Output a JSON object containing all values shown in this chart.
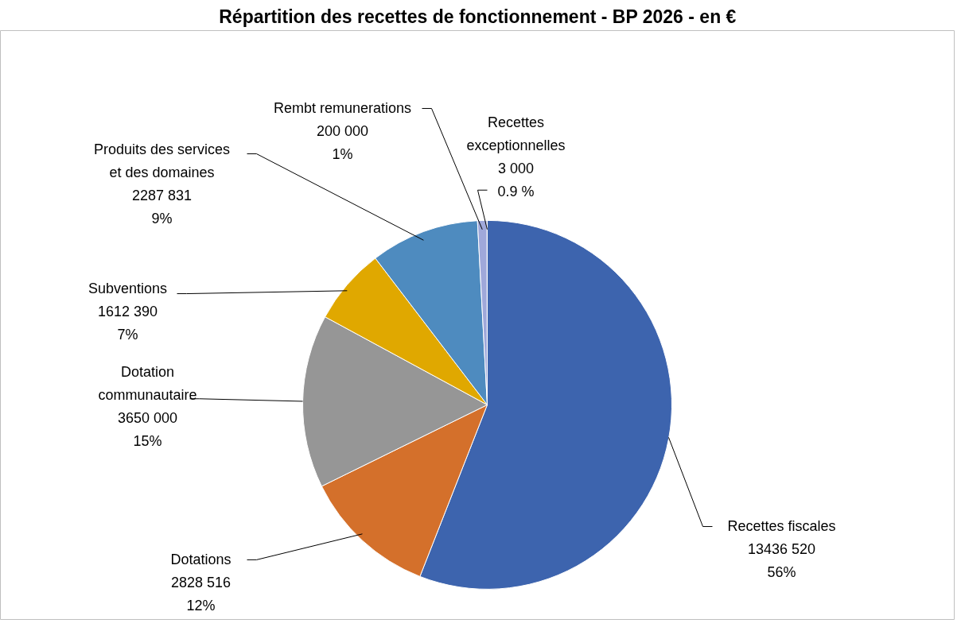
{
  "chart_data": {
    "type": "pie",
    "title": "Répartition des recettes de fonctionnement - BP 2026 - en €",
    "categories": [
      "Recettes fiscales",
      "Dotations",
      "Dotation\ncommunautaire",
      "Subventions",
      "Produits des services\net des domaines",
      "Rembt remunerations",
      "Recettes\nexceptionnelles"
    ],
    "values": [
      13436520,
      2828516,
      3650000,
      1612390,
      2287831,
      200000,
      3000
    ],
    "value_labels": [
      "13436 520\n56%",
      "2828 516\n12%",
      "3650 000\n15%",
      "1612 390\n7%",
      "2287 831\n9%",
      "200 000\n1%",
      "3 000\n0.9 %"
    ],
    "colors": [
      "#3d64ae",
      "#d4702b",
      "#969696",
      "#e0a800",
      "#4e8bbf",
      "#9fa8da",
      "#264478"
    ]
  }
}
